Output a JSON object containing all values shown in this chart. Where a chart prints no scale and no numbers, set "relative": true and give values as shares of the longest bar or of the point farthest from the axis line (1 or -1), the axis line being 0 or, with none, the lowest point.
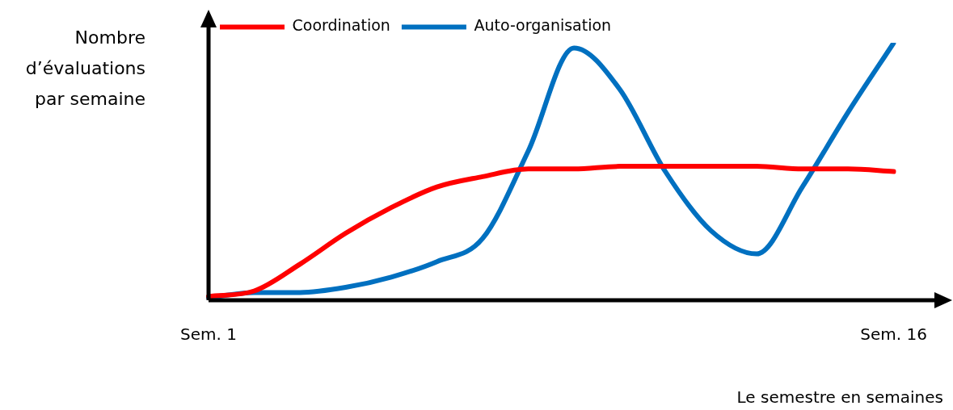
{
  "chart_data": {
    "type": "line",
    "relative": true,
    "xlabel": "Le semestre en semaines",
    "ylabel": "Nombre d’évaluations par semaine",
    "categories": [
      "Sem. 1",
      null,
      null,
      null,
      null,
      null,
      null,
      null,
      null,
      null,
      null,
      null,
      null,
      null,
      null,
      "Sem. 16"
    ],
    "series": [
      {
        "name": "Coordination",
        "color": "#ff0000",
        "values": [
          0.015,
          0.036,
          0.14,
          0.26,
          0.36,
          0.44,
          0.48,
          0.51,
          0.51,
          0.52,
          0.52,
          0.52,
          0.52,
          0.51,
          0.51,
          0.5
        ]
      },
      {
        "name": "Auto-organisation",
        "color": "#0070c0",
        "values": [
          0.01,
          0.03,
          0.03,
          0.05,
          0.09,
          0.15,
          0.24,
          0.58,
          0.98,
          0.82,
          0.5,
          0.27,
          0.18,
          0.44,
          0.73,
          1
        ]
      }
    ],
    "legend": "top left",
    "grid": false,
    "marker": "none",
    "line_style": "solid"
  }
}
